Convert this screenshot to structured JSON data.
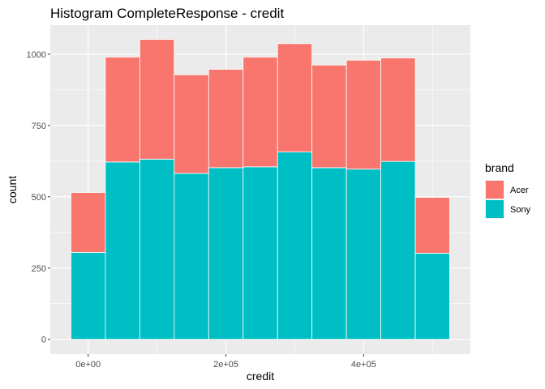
{
  "chart_data": {
    "type": "bar",
    "stacked": true,
    "title": "Histogram CompleteResponse - credit",
    "xlabel": "credit",
    "ylabel": "count",
    "x_ticks": [
      {
        "value": 0,
        "label": "0e+00"
      },
      {
        "value": 200000,
        "label": "2e+05"
      },
      {
        "value": 400000,
        "label": "4e+05"
      }
    ],
    "y_ticks": [
      {
        "value": 0,
        "label": "0"
      },
      {
        "value": 250,
        "label": "250"
      },
      {
        "value": 500,
        "label": "500"
      },
      {
        "value": 750,
        "label": "750"
      },
      {
        "value": 1000,
        "label": "1000"
      }
    ],
    "xlim": [
      -55000,
      555000
    ],
    "ylim": [
      -52,
      1102
    ],
    "bin_width": 50000,
    "bin_centers": [
      0,
      50000,
      100000,
      150000,
      200000,
      250000,
      300000,
      350000,
      400000,
      450000,
      500000
    ],
    "legend": {
      "title": "brand",
      "position": "right"
    },
    "series": [
      {
        "name": "Sony",
        "color": "#00BFC4",
        "values": [
          305,
          622,
          632,
          582,
          602,
          605,
          657,
          602,
          597,
          624,
          302
        ]
      },
      {
        "name": "Acer",
        "color": "#F8766D",
        "values": [
          210,
          368,
          420,
          346,
          345,
          385,
          380,
          360,
          382,
          363,
          196
        ]
      }
    ],
    "grid": true,
    "panel_background": "#EBEBEB"
  }
}
